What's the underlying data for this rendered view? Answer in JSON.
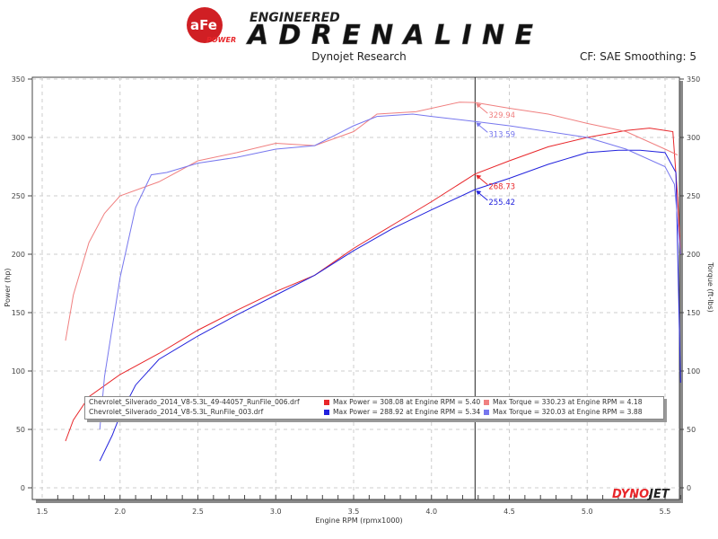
{
  "header": {
    "logo_text": "aFe POWER",
    "brand_tagline_top": "ENGINEERED",
    "brand_tagline_main": "ADRENALINE",
    "subtitle": "Dynojet Research",
    "correction_info": "CF: SAE Smoothing: 5"
  },
  "watermark": "DYNOJET",
  "chart_data": {
    "type": "line",
    "xlabel": "Engine RPM (rpmx1000)",
    "ylabel_left": "Power (hp)",
    "ylabel_right": "Torque (ft-lbs)",
    "xlim": [
      1.5,
      5.6
    ],
    "ylim": [
      0,
      350
    ],
    "x_ticks": [
      "1.5",
      "2.0",
      "2.5",
      "3.0",
      "3.5",
      "4.0",
      "4.5",
      "5.0",
      "5.5"
    ],
    "y_ticks": [
      "0",
      "50",
      "100",
      "150",
      "200",
      "250",
      "300",
      "350"
    ],
    "grid": true,
    "legend_placement": "bottom-center",
    "cursor_rpm": 4.28,
    "series": [
      {
        "id": "power_006",
        "color": "#e8262a",
        "axis": "left",
        "x": [
          1.65,
          1.7,
          1.8,
          2.0,
          2.25,
          2.5,
          2.75,
          3.0,
          3.25,
          3.5,
          3.75,
          4.0,
          4.28,
          4.5,
          4.75,
          5.0,
          5.25,
          5.4,
          5.55,
          5.58,
          5.6
        ],
        "y": [
          40,
          58,
          78,
          97,
          115,
          135,
          152,
          168,
          182,
          205,
          225,
          245,
          268.73,
          280,
          292,
          300,
          306,
          308,
          305,
          250,
          200
        ],
        "cursor_value": "268.73"
      },
      {
        "id": "power_003",
        "color": "#2222dd",
        "axis": "left",
        "x": [
          1.87,
          1.95,
          2.0,
          2.1,
          2.25,
          2.5,
          2.75,
          3.0,
          3.25,
          3.5,
          3.75,
          4.0,
          4.28,
          4.5,
          4.75,
          5.0,
          5.2,
          5.34,
          5.5,
          5.57,
          5.6
        ],
        "y": [
          23,
          45,
          62,
          88,
          110,
          130,
          148,
          165,
          182,
          203,
          222,
          238,
          255.42,
          265,
          277,
          287,
          289,
          289,
          287,
          270,
          90
        ],
        "cursor_value": "255.42"
      },
      {
        "id": "torque_006",
        "color": "#f08080",
        "axis": "right",
        "x": [
          1.65,
          1.7,
          1.8,
          1.9,
          2.0,
          2.25,
          2.5,
          2.75,
          3.0,
          3.25,
          3.5,
          3.65,
          3.9,
          4.18,
          4.28,
          4.5,
          4.75,
          5.0,
          5.25,
          5.5,
          5.58
        ],
        "y": [
          126,
          165,
          210,
          235,
          250,
          262,
          280,
          287,
          295,
          293,
          305,
          320,
          322,
          330.23,
          329.94,
          325,
          320,
          312,
          305,
          290,
          285
        ],
        "cursor_value": "329.94"
      },
      {
        "id": "torque_003",
        "color": "#7777ee",
        "axis": "right",
        "x": [
          1.87,
          1.9,
          2.0,
          2.1,
          2.2,
          2.3,
          2.5,
          2.75,
          3.0,
          3.25,
          3.5,
          3.65,
          3.88,
          4.0,
          4.28,
          4.5,
          4.75,
          5.0,
          5.25,
          5.5,
          5.56,
          5.6
        ],
        "y": [
          50,
          95,
          180,
          240,
          268,
          270,
          278,
          283,
          290,
          293,
          310,
          318,
          320.03,
          318,
          313.59,
          310,
          305,
          300,
          290,
          275,
          260,
          200
        ],
        "cursor_value": "313.59"
      }
    ]
  },
  "legend": {
    "rows": [
      {
        "file": "Chevrolet_Silverado_2014_V8-5.3L_49-44057_RunFile_006.drf",
        "power": "Max Power = 308.08 at Engine RPM = 5.40",
        "torque": "Max Torque = 330.23 at Engine RPM = 4.18",
        "power_color": "#e8262a",
        "torque_color": "#f08080"
      },
      {
        "file": "Chevrolet_Silverado_2014_V8-5.3L_RunFile_003.drf",
        "power": "Max Power = 288.92 at Engine RPM = 5.34",
        "torque": "Max Torque = 320.03 at Engine RPM = 3.88",
        "power_color": "#2222dd",
        "torque_color": "#7777ee"
      }
    ]
  }
}
